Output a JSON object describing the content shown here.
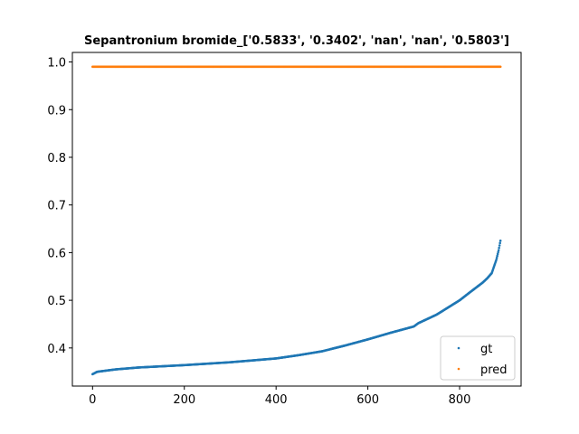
{
  "chart_data": {
    "type": "scatter",
    "title": "Sepantronium bromide_['0.5833', '0.3402', 'nan', 'nan', '0.5803']",
    "xlabel": "",
    "ylabel": "",
    "xlim": [
      -44,
      934
    ],
    "ylim": [
      0.32,
      1.02
    ],
    "xticks": [
      0,
      200,
      400,
      600,
      800
    ],
    "yticks": [
      0.4,
      0.5,
      0.6,
      0.7,
      0.8,
      0.9,
      1.0
    ],
    "xtick_labels": [
      "0",
      "200",
      "400",
      "600",
      "800"
    ],
    "ytick_labels": [
      "0.4",
      "0.5",
      "0.6",
      "0.7",
      "0.8",
      "0.9",
      "1.0"
    ],
    "grid": false,
    "legend_position": "lower-right",
    "series": [
      {
        "name": "gt",
        "color": "#1f77b4",
        "n_points": 890,
        "curve_x": [
          0,
          10,
          50,
          100,
          200,
          300,
          400,
          450,
          500,
          550,
          600,
          650,
          700,
          710,
          750,
          800,
          820,
          850,
          860,
          870,
          880,
          885,
          889
        ],
        "curve_y": [
          0.345,
          0.35,
          0.355,
          0.359,
          0.364,
          0.37,
          0.378,
          0.385,
          0.393,
          0.405,
          0.418,
          0.432,
          0.445,
          0.452,
          0.47,
          0.5,
          0.515,
          0.537,
          0.546,
          0.557,
          0.585,
          0.605,
          0.625
        ]
      },
      {
        "name": "pred",
        "color": "#ff7f0e",
        "n_points": 890,
        "constant_y": 0.99
      }
    ]
  }
}
